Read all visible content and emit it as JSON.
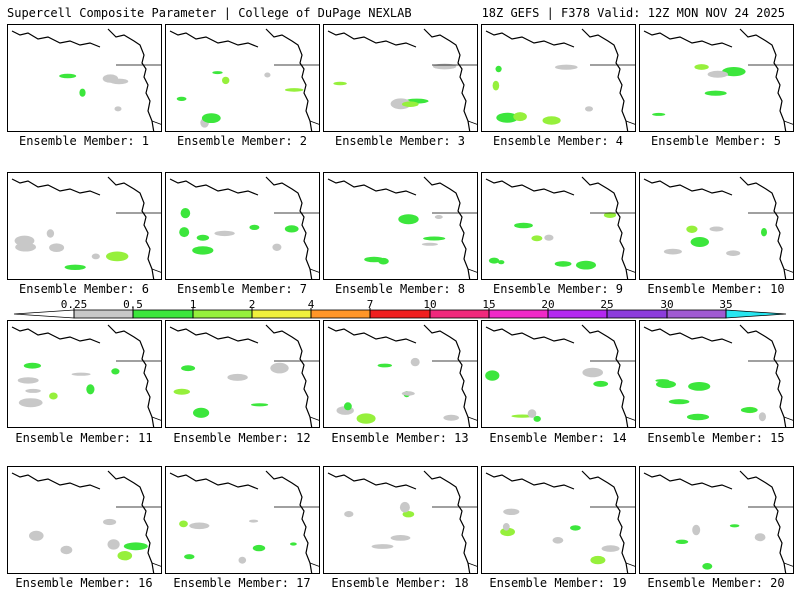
{
  "header": {
    "left": "Supercell Composite Parameter | College of DuPage NEXLAB",
    "right": "18Z GEFS | F378 Valid: 12Z MON NOV 24 2025"
  },
  "panel_label_prefix": "Ensemble Member: ",
  "members": [
    1,
    2,
    3,
    4,
    5,
    6,
    7,
    8,
    9,
    10,
    11,
    12,
    13,
    14,
    15,
    16,
    17,
    18,
    19,
    20
  ],
  "colorbar": {
    "thresholds": [
      "0.25",
      "0.5",
      "1",
      "2",
      "4",
      "7",
      "10",
      "15",
      "20",
      "25",
      "30",
      "35"
    ],
    "colors": [
      "#c8c8c8",
      "#3ce63c",
      "#96f03c",
      "#f0f03c",
      "#ff9628",
      "#f01e1e",
      "#f0287c",
      "#f028c8",
      "#b428f0",
      "#8c3cdc",
      "#a05ad2",
      "#28e6f0"
    ],
    "min_color": "#ffffff"
  },
  "map": {
    "land_color": "#ffffff",
    "line_color": "#000000"
  }
}
